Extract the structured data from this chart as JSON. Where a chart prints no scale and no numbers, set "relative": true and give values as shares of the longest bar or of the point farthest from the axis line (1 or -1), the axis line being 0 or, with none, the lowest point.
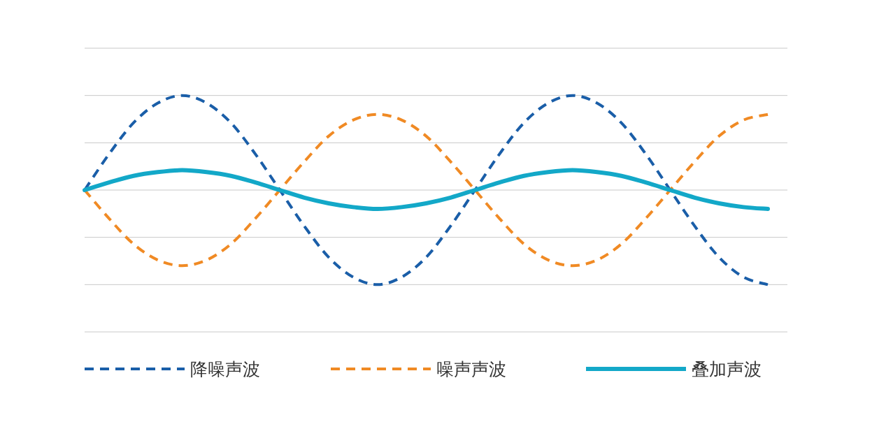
{
  "chart_data": {
    "type": "line",
    "relative": true,
    "grid": "y",
    "legend": "bottom",
    "categories": [
      null,
      null,
      null,
      null,
      null,
      null,
      null,
      null,
      null,
      null,
      null,
      null,
      null,
      null,
      null,
      null,
      null,
      null,
      null,
      null,
      null,
      null,
      null,
      null,
      null,
      null,
      null,
      null,
      null
    ],
    "series": [
      {
        "name": "降噪声波",
        "color": "#1a5ea8",
        "line_style": "dashed",
        "values": [
          0,
          0.38,
          0.71,
          0.92,
          1,
          0.92,
          0.71,
          0.38,
          0,
          -0.38,
          -0.71,
          -0.92,
          -1,
          -0.92,
          -0.71,
          -0.38,
          0,
          0.38,
          0.71,
          0.92,
          1,
          0.92,
          0.71,
          0.38,
          0,
          -0.38,
          -0.71,
          -0.92,
          -1
        ]
      },
      {
        "name": "噪声声波",
        "color": "#f08a24",
        "line_style": "dashed",
        "values": [
          0,
          -0.3,
          -0.57,
          -0.74,
          -0.8,
          -0.74,
          -0.57,
          -0.3,
          0,
          0.3,
          0.57,
          0.74,
          0.8,
          0.74,
          0.57,
          0.3,
          0,
          -0.3,
          -0.57,
          -0.74,
          -0.8,
          -0.74,
          -0.57,
          -0.3,
          0,
          0.3,
          0.57,
          0.74,
          0.8
        ]
      },
      {
        "name": "叠加声波",
        "color": "#13a8c8",
        "line_style": "solid",
        "values": [
          0,
          0.08,
          0.15,
          0.19,
          0.21,
          0.19,
          0.15,
          0.08,
          0,
          -0.08,
          -0.14,
          -0.18,
          -0.2,
          -0.18,
          -0.14,
          -0.08,
          0,
          0.08,
          0.15,
          0.19,
          0.21,
          0.19,
          0.15,
          0.08,
          0,
          -0.08,
          -0.14,
          -0.18,
          -0.2
        ]
      }
    ]
  }
}
